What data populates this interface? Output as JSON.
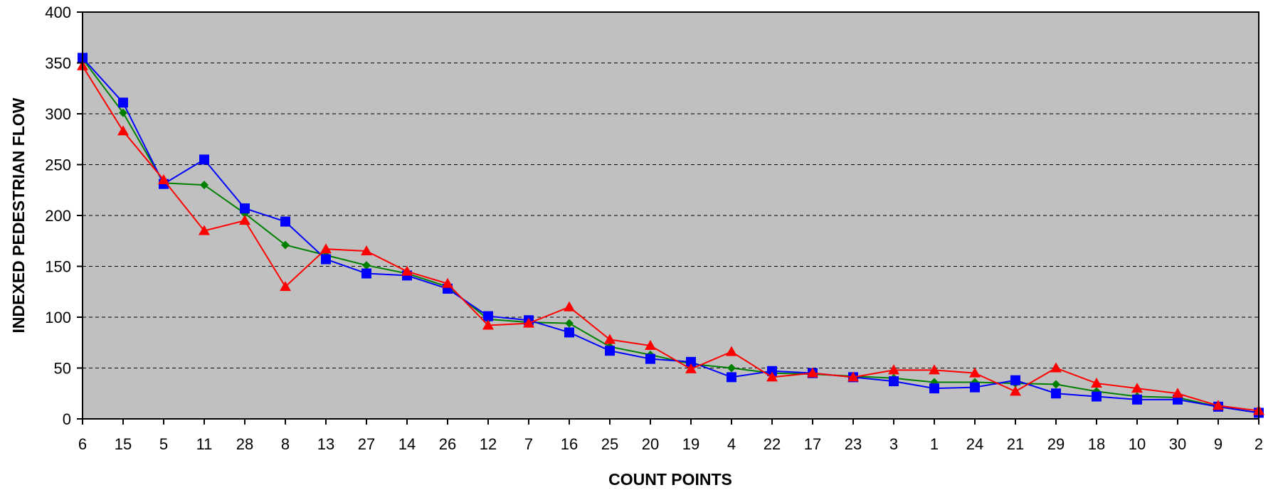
{
  "chart_data": {
    "type": "line",
    "title": "",
    "xlabel": "COUNT POINTS",
    "ylabel": "INDEXED PEDESTRIAN FLOW",
    "ylim": [
      0,
      400
    ],
    "yticks": [
      0,
      50,
      100,
      150,
      200,
      250,
      300,
      350,
      400
    ],
    "grid": "horizontal dashed",
    "plot_background": "#C0C0C0",
    "categories": [
      "6",
      "15",
      "5",
      "11",
      "28",
      "8",
      "13",
      "27",
      "14",
      "26",
      "12",
      "7",
      "16",
      "25",
      "20",
      "19",
      "4",
      "22",
      "17",
      "23",
      "3",
      "1",
      "24",
      "21",
      "29",
      "18",
      "10",
      "30",
      "9",
      "2"
    ],
    "series": [
      {
        "color": "#008000",
        "marker": "diamond",
        "values": [
          354,
          301,
          232,
          230,
          202,
          171,
          161,
          151,
          143,
          130,
          98,
          95,
          94,
          71,
          63,
          54,
          50,
          45,
          44,
          42,
          40,
          36,
          36,
          35,
          34,
          27,
          22,
          21,
          12,
          6
        ]
      },
      {
        "color": "#0000FF",
        "marker": "square",
        "values": [
          355,
          311,
          231,
          255,
          207,
          194,
          157,
          143,
          141,
          128,
          101,
          97,
          85,
          67,
          59,
          56,
          41,
          47,
          45,
          41,
          37,
          30,
          31,
          38,
          25,
          22,
          19,
          19,
          12,
          6
        ]
      },
      {
        "color": "#FF0000",
        "marker": "triangle",
        "values": [
          347,
          283,
          235,
          185,
          195,
          130,
          167,
          165,
          145,
          133,
          92,
          94,
          110,
          78,
          72,
          49,
          66,
          41,
          45,
          41,
          48,
          48,
          45,
          27,
          50,
          35,
          30,
          25,
          13,
          8
        ]
      }
    ]
  }
}
